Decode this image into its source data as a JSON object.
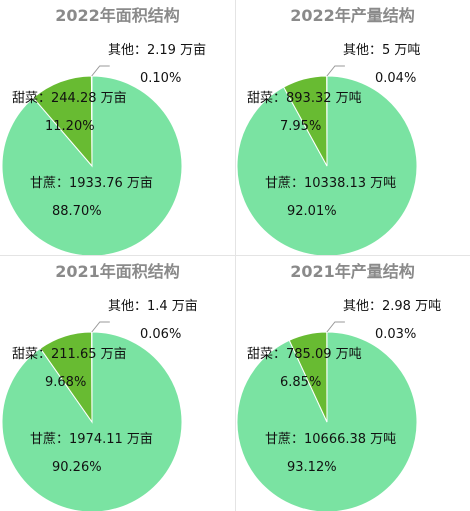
{
  "charts": [
    {
      "title": "2022年面积结构",
      "chart_data": {
        "type": "pie",
        "categories": [
          "甘蔗",
          "甜菜",
          "其他"
        ],
        "values": [
          1933.76,
          244.28,
          2.19
        ],
        "unit": "万亩",
        "percent_labels": [
          "88.70%",
          "11.20%",
          "0.10%"
        ],
        "colors": [
          "#7ae3a2",
          "#68bb32",
          "#f0d878"
        ]
      }
    },
    {
      "title": "2022年产量结构",
      "chart_data": {
        "type": "pie",
        "categories": [
          "甘蔗",
          "甜菜",
          "其他"
        ],
        "values": [
          10338.13,
          893.32,
          5
        ],
        "unit": "万吨",
        "percent_labels": [
          "92.01%",
          "7.95%",
          "0.04%"
        ],
        "colors": [
          "#7ae3a2",
          "#68bb32",
          "#f0d878"
        ]
      }
    },
    {
      "title": "2021年面积结构",
      "chart_data": {
        "type": "pie",
        "categories": [
          "甘蔗",
          "甜菜",
          "其他"
        ],
        "values": [
          1974.11,
          211.65,
          1.4
        ],
        "unit": "万亩",
        "percent_labels": [
          "90.26%",
          "9.68%",
          "0.06%"
        ],
        "colors": [
          "#7ae3a2",
          "#68bb32",
          "#f0d878"
        ]
      }
    },
    {
      "title": "2021年产量结构",
      "chart_data": {
        "type": "pie",
        "categories": [
          "甘蔗",
          "甜菜",
          "其他"
        ],
        "values": [
          10666.38,
          785.09,
          2.98
        ],
        "unit": "万吨",
        "percent_labels": [
          "93.12%",
          "6.85%",
          "0.03%"
        ],
        "colors": [
          "#7ae3a2",
          "#68bb32",
          "#f0d878"
        ]
      }
    }
  ]
}
